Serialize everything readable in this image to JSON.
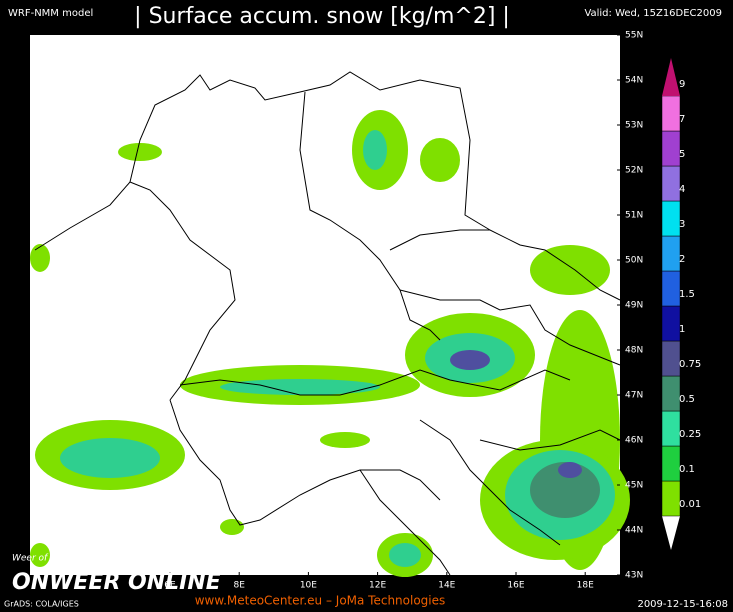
{
  "header": {
    "model": "WRF-NMM model",
    "title": "| Surface accum. snow [kg/m^2] |",
    "valid": "Valid: Wed, 15Z16DEC2009"
  },
  "map": {
    "lat_ticks": [
      {
        "value": 55,
        "label": "55N"
      },
      {
        "value": 54,
        "label": "54N"
      },
      {
        "value": 53,
        "label": "53N"
      },
      {
        "value": 52,
        "label": "52N"
      },
      {
        "value": 51,
        "label": "51N"
      },
      {
        "value": 50,
        "label": "50N"
      },
      {
        "value": 49,
        "label": "49N"
      },
      {
        "value": 48,
        "label": "48N"
      },
      {
        "value": 47,
        "label": "47N"
      },
      {
        "value": 46,
        "label": "46N"
      },
      {
        "value": 45,
        "label": "45N"
      },
      {
        "value": 44,
        "label": "44N"
      },
      {
        "value": 43,
        "label": "43N"
      }
    ],
    "lon_ticks": [
      {
        "value": 6,
        "label": "6E"
      },
      {
        "value": 8,
        "label": "8E"
      },
      {
        "value": 10,
        "label": "10E"
      },
      {
        "value": 12,
        "label": "12E"
      },
      {
        "value": 14,
        "label": "14E"
      },
      {
        "value": 16,
        "label": "16E"
      },
      {
        "value": 18,
        "label": "18E"
      }
    ]
  },
  "colorbar": {
    "levels": [
      0.01,
      0.1,
      0.25,
      0.5,
      0.75,
      1,
      1.5,
      2,
      3,
      4,
      5,
      7,
      9
    ],
    "colors": [
      "#ffffff",
      "#7fe000",
      "#1fcf3f",
      "#2fdf9f",
      "#3f8f6f",
      "#50508f",
      "#1010a0",
      "#2060e0",
      "#20a0f0",
      "#00e0f0",
      "#9070e0",
      "#a040d0",
      "#f070e0",
      "#c01070"
    ]
  },
  "footer": {
    "grads": "GrADS: COLA/IGES",
    "site": "www.MeteoCenter.eu  –  JoMa Technologies",
    "timestamp": "2009-12-15-16:08",
    "slogan": "Weer of geen weer, altijd actueel!",
    "logo": "ONWEER ONLINE"
  }
}
